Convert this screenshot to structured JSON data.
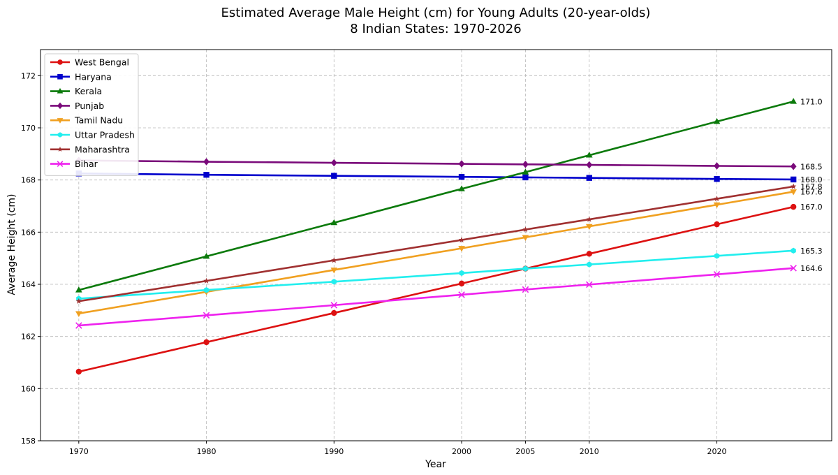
{
  "chart_data": {
    "type": "line",
    "title": "Estimated Average Male Height (cm) for Young Adults (20-year-olds)",
    "subtitle": "8 Indian States: 1970-2026",
    "xlabel": "Year",
    "ylabel": "Average Height (cm)",
    "xlim": [
      1967,
      2029
    ],
    "ylim": [
      158,
      173
    ],
    "x_ticks": [
      1970,
      1980,
      1990,
      2000,
      2005,
      2010,
      2020
    ],
    "y_ticks": [
      158,
      160,
      162,
      164,
      166,
      168,
      170,
      172
    ],
    "grid": true,
    "legend_position": "top-left",
    "x": [
      1970,
      1980,
      1990,
      2000,
      2005,
      2010,
      2020,
      2026
    ],
    "series": [
      {
        "name": "West Bengal",
        "color": "#dd1111",
        "marker": "circle",
        "values": [
          160.65,
          161.78,
          162.9,
          164.03,
          164.6,
          165.17,
          166.3,
          166.97
        ],
        "end_label": "167.0"
      },
      {
        "name": "Haryana",
        "color": "#0000cc",
        "marker": "square",
        "values": [
          168.25,
          168.2,
          168.16,
          168.12,
          168.1,
          168.08,
          168.04,
          168.02
        ],
        "end_label": "168.0"
      },
      {
        "name": "Kerala",
        "color": "#0b7a0b",
        "marker": "triangle-up",
        "values": [
          163.78,
          165.07,
          166.36,
          167.66,
          168.3,
          168.95,
          170.24,
          171.01
        ],
        "end_label": "171.0"
      },
      {
        "name": "Punjab",
        "color": "#7a0a7a",
        "marker": "diamond",
        "values": [
          168.75,
          168.7,
          168.66,
          168.62,
          168.6,
          168.58,
          168.54,
          168.52
        ],
        "end_label": "168.5"
      },
      {
        "name": "Tamil Nadu",
        "color": "#f0a020",
        "marker": "triangle-down",
        "values": [
          162.88,
          163.71,
          164.55,
          165.38,
          165.8,
          166.22,
          167.05,
          167.55
        ],
        "end_label": "167.6"
      },
      {
        "name": "Uttar Pradesh",
        "color": "#22eeee",
        "marker": "hexagon",
        "values": [
          163.45,
          163.78,
          164.1,
          164.43,
          164.6,
          164.76,
          165.09,
          165.29
        ],
        "end_label": "165.3"
      },
      {
        "name": "Maharashtra",
        "color": "#a03030",
        "marker": "star",
        "values": [
          163.35,
          164.13,
          164.92,
          165.7,
          166.1,
          166.49,
          167.28,
          167.75
        ],
        "end_label": "167.8"
      },
      {
        "name": "Bihar",
        "color": "#ee22ee",
        "marker": "x",
        "values": [
          162.42,
          162.81,
          163.2,
          163.6,
          163.8,
          163.99,
          164.38,
          164.62
        ],
        "end_label": "164.6"
      }
    ]
  }
}
